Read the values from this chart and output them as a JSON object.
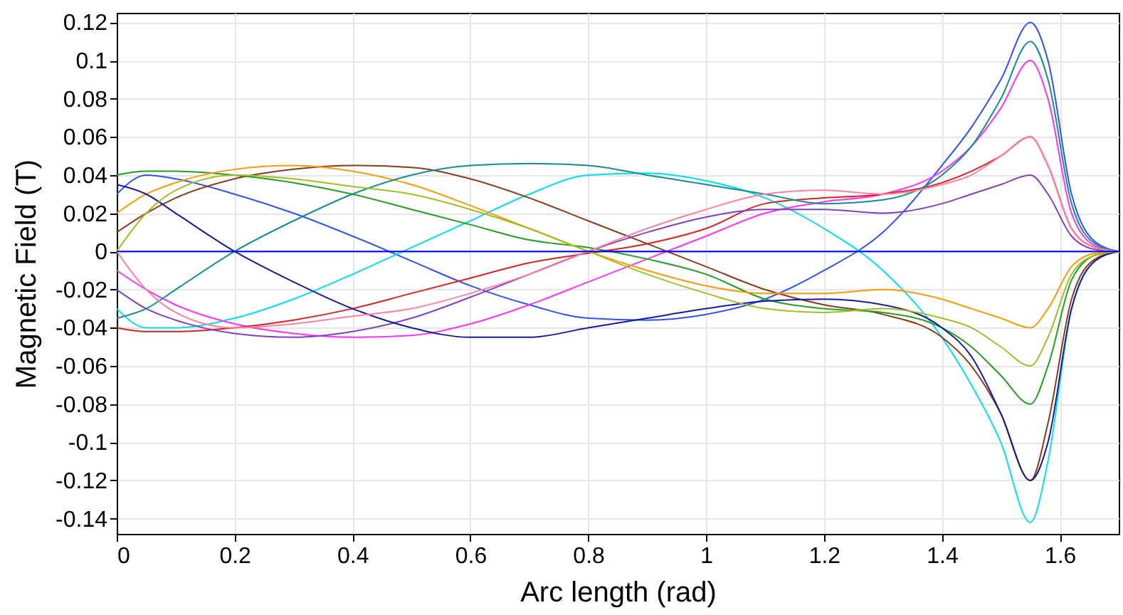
{
  "chart_data": {
    "type": "line",
    "xlabel": "Arc length (rad)",
    "ylabel": "Magnetic Field (T)",
    "x": [
      0,
      0.05,
      0.1,
      0.2,
      0.3,
      0.4,
      0.5,
      0.6,
      0.7,
      0.8,
      0.9,
      1.0,
      1.1,
      1.2,
      1.3,
      1.4,
      1.45,
      1.5,
      1.55,
      1.58,
      1.62,
      1.66,
      1.7
    ],
    "xlim": [
      0,
      1.7
    ],
    "xticks": [
      0,
      0.2,
      0.4,
      0.6,
      0.8,
      1,
      1.2,
      1.4,
      1.6
    ],
    "ylim": [
      -0.148,
      0.125
    ],
    "yticks": [
      -0.14,
      -0.12,
      -0.1,
      -0.08,
      -0.06,
      -0.04,
      -0.02,
      0,
      0.02,
      0.04,
      0.06,
      0.08,
      0.1,
      0.12
    ],
    "grid": true,
    "marker": "none",
    "line_style": "solid",
    "series": [
      {
        "color": "#3050ff",
        "values": [
          0.03,
          0.04,
          0.038,
          0.03,
          0.02,
          0.008,
          -0.005,
          -0.018,
          -0.028,
          -0.035,
          -0.036,
          -0.033,
          -0.025,
          -0.01,
          0.01,
          0.045,
          0.065,
          0.09,
          0.12,
          0.1,
          0.03,
          0.005,
          0
        ]
      },
      {
        "color": "#00e0f0",
        "values": [
          -0.03,
          -0.04,
          -0.04,
          -0.035,
          -0.025,
          -0.012,
          0.002,
          0.016,
          0.03,
          0.04,
          0.041,
          0.037,
          0.028,
          0.012,
          -0.01,
          -0.045,
          -0.07,
          -0.1,
          -0.142,
          -0.11,
          -0.03,
          -0.005,
          0
        ]
      },
      {
        "color": "#8b3a1a",
        "values": [
          0.01,
          0.02,
          0.028,
          0.038,
          0.043,
          0.045,
          0.044,
          0.038,
          0.028,
          0.016,
          0.004,
          -0.008,
          -0.02,
          -0.028,
          -0.033,
          -0.045,
          -0.06,
          -0.085,
          -0.12,
          -0.09,
          -0.025,
          -0.004,
          0
        ]
      },
      {
        "color": "#ff30ff",
        "values": [
          -0.01,
          -0.02,
          -0.028,
          -0.038,
          -0.043,
          -0.045,
          -0.044,
          -0.038,
          -0.028,
          -0.016,
          -0.004,
          0.008,
          0.02,
          0.026,
          0.03,
          0.042,
          0.055,
          0.075,
          0.1,
          0.08,
          0.02,
          0.003,
          0
        ]
      },
      {
        "color": "#20a020",
        "values": [
          0.04,
          0.042,
          0.042,
          0.04,
          0.036,
          0.03,
          0.022,
          0.014,
          0.006,
          0.002,
          -0.004,
          -0.012,
          -0.025,
          -0.03,
          -0.032,
          -0.04,
          -0.05,
          -0.065,
          -0.08,
          -0.06,
          -0.015,
          -0.002,
          0
        ]
      },
      {
        "color": "#e02020",
        "values": [
          -0.04,
          -0.042,
          -0.042,
          -0.04,
          -0.036,
          -0.03,
          -0.022,
          -0.014,
          -0.006,
          -0.001,
          0.004,
          0.012,
          0.025,
          0.028,
          0.03,
          0.036,
          0.042,
          0.05,
          0.06,
          0.045,
          0.012,
          0.002,
          0
        ]
      },
      {
        "color": "#ff9900",
        "values": [
          0.02,
          0.03,
          0.036,
          0.043,
          0.045,
          0.042,
          0.035,
          0.024,
          0.012,
          0,
          -0.01,
          -0.018,
          -0.022,
          -0.022,
          -0.02,
          -0.025,
          -0.03,
          -0.035,
          -0.04,
          -0.03,
          -0.008,
          -0.001,
          0
        ]
      },
      {
        "color": "#8040c0",
        "values": [
          -0.02,
          -0.03,
          -0.036,
          -0.043,
          -0.045,
          -0.042,
          -0.035,
          -0.024,
          -0.012,
          0,
          0.01,
          0.018,
          0.022,
          0.022,
          0.02,
          0.025,
          0.03,
          0.035,
          0.04,
          0.03,
          0.008,
          0.001,
          0
        ]
      },
      {
        "color": "#1a1aa0",
        "values": [
          0.035,
          0.03,
          0.02,
          0,
          -0.016,
          -0.03,
          -0.04,
          -0.045,
          -0.045,
          -0.04,
          -0.035,
          -0.03,
          -0.026,
          -0.025,
          -0.028,
          -0.04,
          -0.055,
          -0.085,
          -0.12,
          -0.1,
          -0.03,
          -0.005,
          0
        ]
      },
      {
        "color": "#109090",
        "values": [
          -0.035,
          -0.03,
          -0.02,
          0,
          0.016,
          0.03,
          0.04,
          0.045,
          0.046,
          0.045,
          0.04,
          0.035,
          0.03,
          0.025,
          0.027,
          0.04,
          0.055,
          0.08,
          0.11,
          0.09,
          0.025,
          0.004,
          0
        ]
      },
      {
        "color": "#a0c020",
        "values": [
          0,
          0.02,
          0.032,
          0.04,
          0.038,
          0.034,
          0.03,
          0.022,
          0.012,
          0,
          -0.012,
          -0.022,
          -0.03,
          -0.032,
          -0.03,
          -0.035,
          -0.04,
          -0.05,
          -0.06,
          -0.045,
          -0.012,
          -0.002,
          0
        ]
      },
      {
        "color": "#ff80a0",
        "values": [
          0,
          -0.02,
          -0.032,
          -0.04,
          -0.038,
          -0.034,
          -0.03,
          -0.022,
          -0.012,
          0,
          0.012,
          0.022,
          0.03,
          0.032,
          0.03,
          0.035,
          0.04,
          0.05,
          0.06,
          0.045,
          0.012,
          0.002,
          0
        ]
      },
      {
        "color": "#0000ff",
        "values": [
          0,
          0,
          0,
          0,
          0,
          0,
          0,
          0,
          0,
          0,
          0,
          0,
          0,
          0,
          0,
          0,
          0,
          0,
          0,
          0,
          0,
          0,
          0
        ]
      }
    ]
  }
}
